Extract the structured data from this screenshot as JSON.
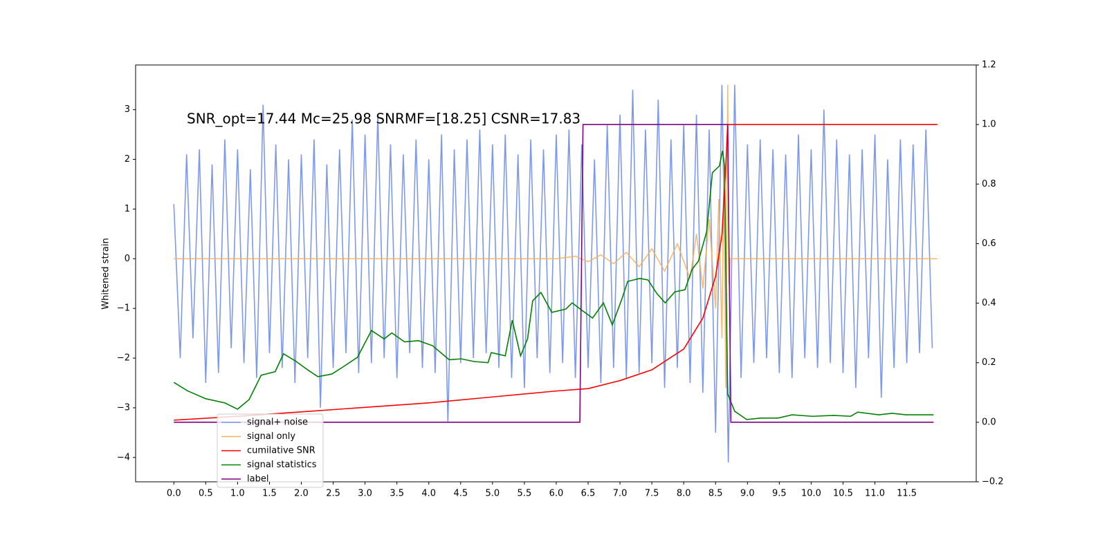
{
  "chart_data": {
    "type": "line",
    "annotation": "SNR_opt=17.44 Mc=25.98 SNRMF=[18.25] CSNR=17.83",
    "ylabel": "Whitened strain",
    "xlim": [
      -0.6,
      12.59
    ],
    "ylim": [
      -4.49,
      3.9
    ],
    "y2lim": [
      -0.2,
      1.2
    ],
    "xticks": [
      {
        "value": 0,
        "label": "0.0"
      },
      0.5,
      {
        "value": 1,
        "label": "1.0"
      },
      1.5,
      {
        "value": 2,
        "label": "2.0"
      },
      2.5,
      {
        "value": 3,
        "label": "3.0"
      },
      3.5,
      {
        "value": 4,
        "label": "4.0"
      },
      4.5,
      {
        "value": 5,
        "label": "5.0"
      },
      5.5,
      {
        "value": 6,
        "label": "6.0"
      },
      6.5,
      {
        "value": 7,
        "label": "7.0"
      },
      7.5,
      {
        "value": 8,
        "label": "8.0"
      },
      8.5,
      {
        "value": 9,
        "label": "9.0"
      },
      9.5,
      {
        "value": 10,
        "label": "10.0"
      },
      10.5,
      {
        "value": 11,
        "label": "11.0"
      },
      11.5
    ],
    "yticks": [
      {
        "value": -4,
        "label": "−4"
      },
      {
        "value": -3,
        "label": "−3"
      },
      {
        "value": -2,
        "label": "−2"
      },
      {
        "value": -1,
        "label": "−1"
      },
      0,
      1,
      2,
      3
    ],
    "y2ticks": [
      {
        "value": -0.2,
        "label": "−0.2"
      },
      {
        "value": 0,
        "label": "0.0"
      },
      0.2,
      0.4,
      0.6,
      0.8,
      {
        "value": 1,
        "label": "1.0"
      },
      1.2
    ],
    "series": [
      {
        "name": "signal+ noise",
        "color": "#7893e8",
        "x": [
          0,
          0.1,
          0.2,
          0.3,
          0.4,
          0.5,
          0.6,
          0.7,
          0.8,
          0.9,
          1,
          1.1,
          1.2,
          1.3,
          1.4,
          1.5,
          1.6,
          1.7,
          1.8,
          1.9,
          2,
          2.1,
          2.2,
          2.3,
          2.4,
          2.5,
          2.6,
          2.7,
          2.8,
          2.9,
          3,
          3.1,
          3.2,
          3.3,
          3.4,
          3.5,
          3.6,
          3.7,
          3.8,
          3.9,
          4,
          4.1,
          4.2,
          4.3,
          4.4,
          4.5,
          4.6,
          4.7,
          4.8,
          4.9,
          5,
          5.1,
          5.2,
          5.3,
          5.4,
          5.5,
          5.6,
          5.7,
          5.8,
          5.9,
          6,
          6.1,
          6.2,
          6.3,
          6.4,
          6.5,
          6.6,
          6.7,
          6.8,
          6.9,
          7,
          7.1,
          7.2,
          7.3,
          7.4,
          7.5,
          7.6,
          7.7,
          7.8,
          7.9,
          8,
          8.1,
          8.2,
          8.3,
          8.4,
          8.5,
          8.6,
          8.7,
          8.8,
          8.9,
          9,
          9.1,
          9.2,
          9.3,
          9.4,
          9.5,
          9.6,
          9.7,
          9.8,
          9.9,
          10,
          10.1,
          10.2,
          10.3,
          10.4,
          10.5,
          10.6,
          10.7,
          10.8,
          10.9,
          11,
          11.1,
          11.2,
          11.3,
          11.4,
          11.5,
          11.6,
          11.7,
          11.8,
          11.9
        ],
        "values": [
          1.1,
          -2.0,
          2.1,
          -1.6,
          2.2,
          -2.5,
          1.9,
          -2.3,
          2.4,
          -1.8,
          2.2,
          -2.1,
          1.8,
          -2.4,
          3.1,
          -1.9,
          2.3,
          -2.2,
          2.0,
          -2.5,
          2.1,
          -2.0,
          2.4,
          -3.0,
          1.9,
          -2.2,
          2.2,
          -1.9,
          2.8,
          -2.3,
          2.5,
          -2.1,
          2.9,
          -2.0,
          2.3,
          -2.4,
          2.1,
          -1.9,
          2.4,
          -2.2,
          2.0,
          -2.3,
          2.5,
          -3.3,
          2.2,
          -2.1,
          2.4,
          -2.0,
          2.6,
          -1.9,
          2.3,
          -2.2,
          2.5,
          -2.4,
          2.1,
          -2.6,
          2.4,
          -2.0,
          2.2,
          -2.3,
          2.5,
          -2.1,
          2.6,
          -2.4,
          2.3,
          -2.2,
          2.0,
          -2.5,
          2.7,
          -2.2,
          2.9,
          -2.4,
          3.4,
          -2.3,
          2.6,
          -2.1,
          3.2,
          -2.6,
          2.4,
          -2.2,
          2.7,
          -2.5,
          2.9,
          -2.7,
          2.6,
          -3.5,
          3.5,
          -4.1,
          3.5,
          -2.4,
          2.3,
          -2.1,
          2.4,
          -2.0,
          2.2,
          -2.3,
          2.1,
          -2.4,
          2.5,
          -2.0,
          2.2,
          -2.2,
          3.0,
          -2.1,
          2.4,
          -2.3,
          2.1,
          -2.6,
          2.2,
          -2.0,
          2.5,
          -2.8,
          2.0,
          -2.2,
          2.4,
          -2.1,
          2.3,
          -1.9,
          2.6,
          -1.8
        ]
      },
      {
        "name": "signal only",
        "color": "#f5b057",
        "x": [
          0,
          6.0,
          6.3,
          6.5,
          6.7,
          6.9,
          7.1,
          7.3,
          7.5,
          7.7,
          7.9,
          8.1,
          8.2,
          8.3,
          8.4,
          8.5,
          8.55,
          8.6,
          8.63,
          8.66,
          8.69,
          8.71,
          8.73,
          11.98
        ],
        "values": [
          0,
          0,
          0.05,
          -0.06,
          0.08,
          -0.1,
          0.13,
          -0.16,
          0.2,
          -0.25,
          0.3,
          -0.4,
          0.5,
          -0.6,
          0.8,
          -1.0,
          1.2,
          -1.6,
          2.0,
          -2.6,
          3.5,
          -0.5,
          0,
          0
        ]
      },
      {
        "name": "cumilative SNR",
        "color": "#ff0000",
        "axis": "y2",
        "x": [
          0,
          1,
          2,
          3,
          4,
          5,
          6,
          6.5,
          7,
          7.5,
          8,
          8.3,
          8.5,
          8.6,
          8.66,
          8.69,
          11.98
        ],
        "values": [
          0.007,
          0.02,
          0.035,
          0.05,
          0.065,
          0.085,
          0.105,
          0.113,
          0.14,
          0.176,
          0.246,
          0.35,
          0.49,
          0.63,
          0.86,
          1.0,
          1.0
        ]
      },
      {
        "name": "signal statistics",
        "color": "#008000",
        "axis": "y2",
        "x": [
          0,
          0.21,
          0.5,
          0.8,
          1.0,
          1.18,
          1.37,
          1.59,
          1.72,
          1.92,
          2.1,
          2.26,
          2.48,
          2.67,
          2.88,
          3.1,
          3.3,
          3.42,
          3.62,
          3.84,
          4.06,
          4.32,
          4.51,
          4.71,
          4.93,
          4.98,
          5.2,
          5.31,
          5.44,
          5.55,
          5.63,
          5.76,
          5.93,
          6.15,
          6.25,
          6.39,
          6.57,
          6.74,
          6.88,
          7.04,
          7.12,
          7.31,
          7.44,
          7.58,
          7.71,
          7.86,
          8.02,
          8.13,
          8.23,
          8.36,
          8.45,
          8.56,
          8.61,
          8.64,
          8.69,
          8.8,
          8.99,
          9.21,
          9.48,
          9.7,
          10.02,
          10.35,
          10.62,
          10.73,
          11.06,
          11.27,
          11.49,
          11.92
        ],
        "values": [
          0.134,
          0.106,
          0.079,
          0.065,
          0.044,
          0.076,
          0.158,
          0.17,
          0.23,
          0.204,
          0.176,
          0.153,
          0.162,
          0.188,
          0.218,
          0.308,
          0.28,
          0.3,
          0.27,
          0.274,
          0.257,
          0.21,
          0.213,
          0.204,
          0.2,
          0.234,
          0.223,
          0.343,
          0.223,
          0.28,
          0.408,
          0.436,
          0.369,
          0.38,
          0.401,
          0.378,
          0.35,
          0.401,
          0.327,
          0.42,
          0.473,
          0.483,
          0.478,
          0.432,
          0.401,
          0.438,
          0.445,
          0.513,
          0.541,
          0.64,
          0.838,
          0.861,
          0.912,
          0.861,
          0.095,
          0.037,
          0.009,
          0.014,
          0.014,
          0.025,
          0.02,
          0.023,
          0.02,
          0.034,
          0.025,
          0.03,
          0.025,
          0.025
        ]
      },
      {
        "name": "label",
        "color": "#800080",
        "axis": "y2",
        "x": [
          0,
          6.37,
          6.42,
          8.69,
          8.74,
          11.92
        ],
        "values": [
          0,
          0,
          1,
          1,
          0,
          0
        ]
      }
    ]
  }
}
